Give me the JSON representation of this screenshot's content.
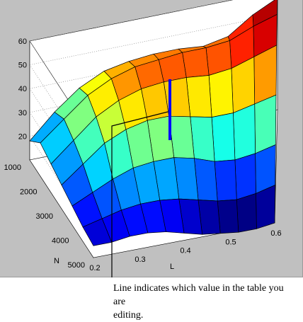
{
  "chart_data": {
    "type": "surface",
    "title": "",
    "xlabel": "L",
    "ylabel": "N",
    "zlabel": "",
    "x_ticks": [
      "0.2",
      "0.3",
      "0.4",
      "0.5",
      "0.6"
    ],
    "y_ticks": [
      "1000",
      "2000",
      "3000",
      "4000",
      "5000"
    ],
    "z_ticks": [
      "20",
      "30",
      "40",
      "50",
      "60"
    ],
    "xlim": [
      0.2,
      0.6
    ],
    "ylim": [
      1000,
      5000
    ],
    "zlim": [
      10,
      60
    ],
    "grid": true,
    "colormap": "jet",
    "z_values": [
      [
        18,
        28,
        36,
        41,
        43,
        44,
        44,
        43,
        45,
        52,
        57
      ],
      [
        24,
        32,
        40,
        45,
        48,
        49,
        50,
        50,
        51,
        55,
        58
      ],
      [
        22,
        30,
        38,
        43,
        46,
        47,
        47,
        46,
        47,
        50,
        53
      ],
      [
        20,
        27,
        34,
        38,
        40,
        40,
        38,
        36,
        36,
        38,
        40
      ],
      [
        18,
        22,
        26,
        29,
        30,
        30,
        28,
        25,
        24,
        25,
        27
      ],
      [
        16,
        18,
        20,
        21,
        21,
        20,
        18,
        16,
        15,
        16,
        18
      ],
      [
        15,
        15,
        16,
        16,
        15,
        13,
        11,
        10,
        9,
        9,
        10
      ]
    ],
    "highlight_value": 46
  },
  "caption": {
    "line1": "Line indicates which value in the table you are",
    "line2": "editing."
  }
}
